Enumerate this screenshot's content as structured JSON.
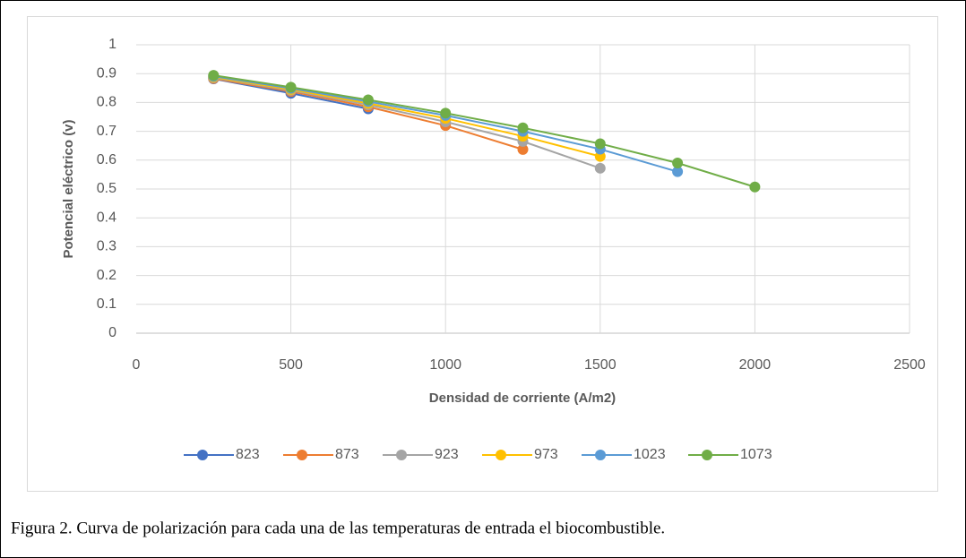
{
  "chart_data": {
    "type": "line",
    "x_label": "Densidad de corriente (A/m2)",
    "y_label": "Potencial eléctrico (v)",
    "x": [
      250,
      500,
      750,
      1000,
      1250,
      1500,
      1750,
      2000
    ],
    "series": [
      {
        "name": "823",
        "color": "#4472c4",
        "values": [
          0.882,
          0.832,
          0.778,
          null,
          null,
          null,
          null,
          null
        ]
      },
      {
        "name": "873",
        "color": "#ed7d31",
        "values": [
          0.883,
          0.838,
          0.785,
          0.72,
          0.637,
          null,
          null,
          null
        ]
      },
      {
        "name": "923",
        "color": "#a5a5a5",
        "values": [
          0.886,
          0.842,
          0.792,
          0.733,
          0.665,
          0.572,
          null,
          null
        ]
      },
      {
        "name": "973",
        "color": "#ffc000",
        "values": [
          0.888,
          0.845,
          0.797,
          0.745,
          0.683,
          0.613,
          null,
          null
        ]
      },
      {
        "name": "1023",
        "color": "#5b9bd5",
        "values": [
          0.891,
          0.849,
          0.803,
          0.755,
          0.7,
          0.638,
          0.56,
          null
        ]
      },
      {
        "name": "1073",
        "color": "#70ad47",
        "values": [
          0.894,
          0.853,
          0.809,
          0.763,
          0.712,
          0.657,
          0.59,
          0.507
        ]
      }
    ],
    "xlim": [
      0,
      2500
    ],
    "xticks": [
      0,
      500,
      1000,
      1500,
      2000,
      2500
    ],
    "ylim": [
      0,
      1
    ],
    "yticks": [
      0,
      0.1,
      0.2,
      0.3,
      0.4,
      0.5,
      0.6,
      0.7,
      0.8,
      0.9,
      1
    ],
    "grid": true,
    "legend": "bottom"
  },
  "caption": "Figura 2. Curva de polarización para cada una de las temperaturas de entrada el biocombustible."
}
